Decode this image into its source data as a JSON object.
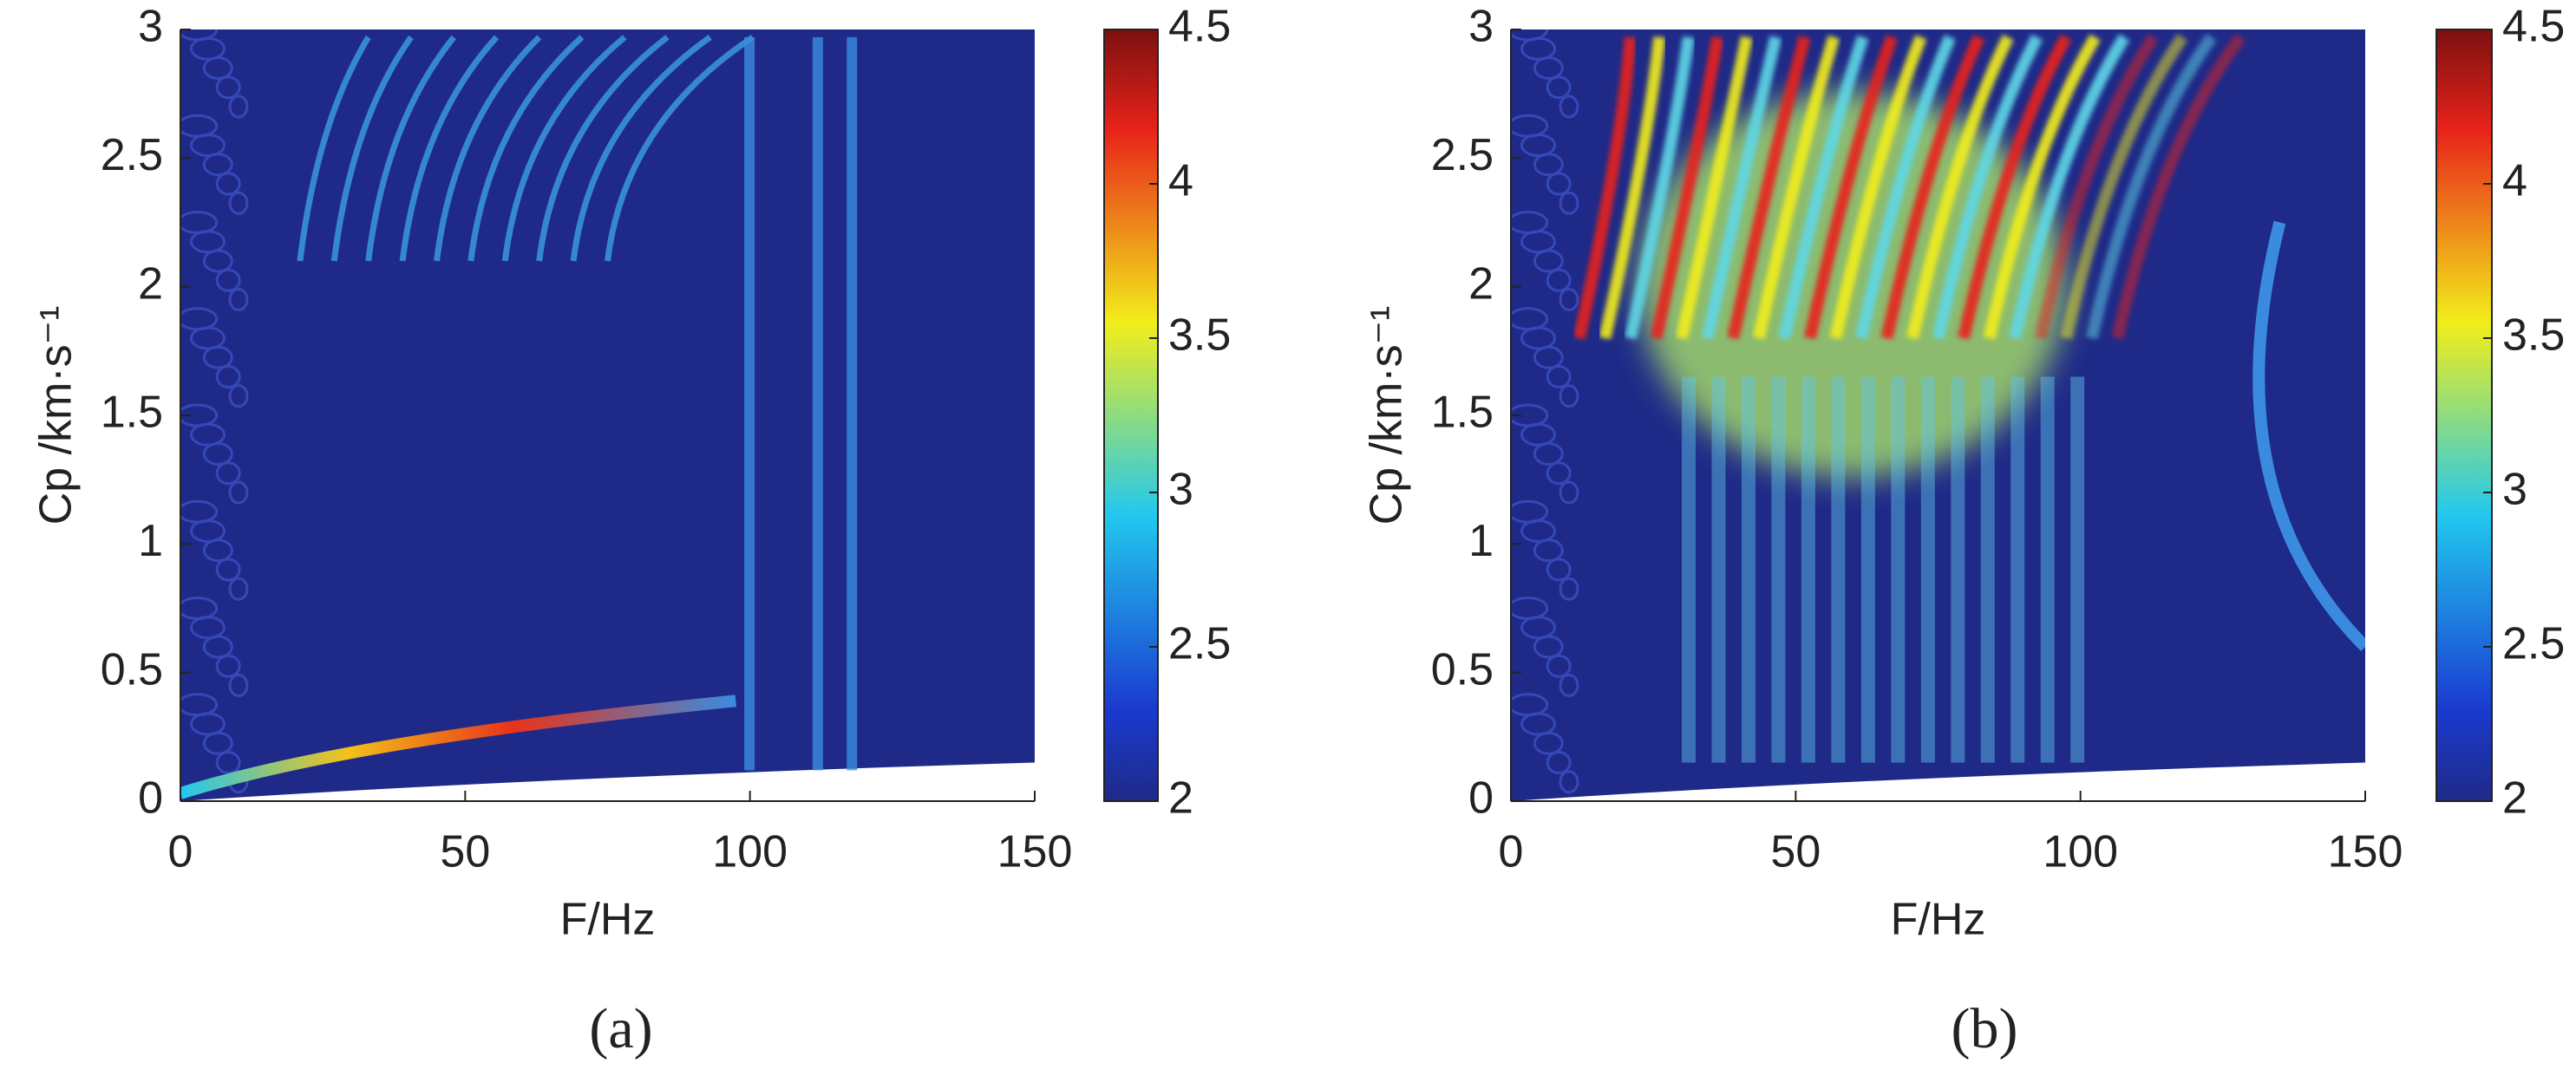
{
  "chart_data": [
    {
      "type": "heatmap",
      "caption": "(a)",
      "xlabel": "F/Hz",
      "ylabel": "Cp /km·s⁻¹",
      "xlim": [
        0,
        150
      ],
      "xticks": [
        0,
        50,
        100,
        150
      ],
      "ylim": [
        0,
        3
      ],
      "yticks": [
        0,
        0.5,
        1,
        1.5,
        2,
        2.5,
        3
      ],
      "clim": [
        2,
        4.5
      ],
      "cticks": [
        2,
        2.5,
        3,
        3.5,
        4,
        4.5
      ],
      "colormap": "jet"
    },
    {
      "type": "heatmap",
      "caption": "(b)",
      "xlabel": "F/Hz",
      "ylabel": "Cp /km·s⁻¹",
      "xlim": [
        0,
        150
      ],
      "xticks": [
        0,
        50,
        100,
        150
      ],
      "ylim": [
        0,
        3
      ],
      "yticks": [
        0,
        0.5,
        1,
        1.5,
        2,
        2.5,
        3
      ],
      "clim": [
        2,
        4.5
      ],
      "cticks": [
        2,
        2.5,
        3,
        3.5,
        4,
        4.5
      ],
      "colormap": "jet"
    }
  ]
}
